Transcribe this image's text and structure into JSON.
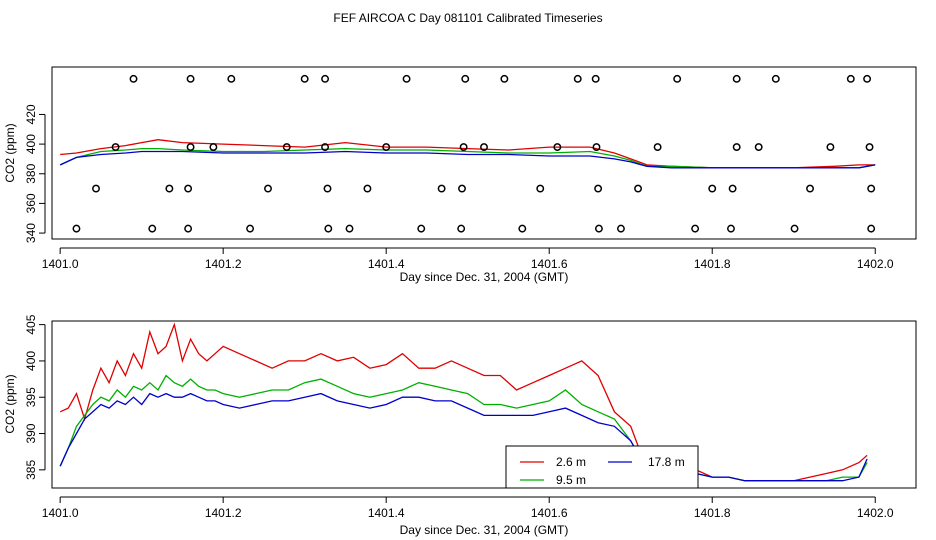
{
  "title": "FEF AIRCOA C  Day 081101  Calibrated Timeseries",
  "chart_data": [
    {
      "type": "line+scatter",
      "name": "top",
      "xlabel": "Day since Dec. 31, 2004 (GMT)",
      "ylabel": "CO2 (ppm)",
      "xlim": [
        1400.99,
        1402.05
      ],
      "ylim": [
        336,
        452
      ],
      "xticks": [
        1401.0,
        1401.2,
        1401.4,
        1401.6,
        1401.8,
        1402.0
      ],
      "xtick_labels": [
        "1401.0",
        "1401.2",
        "1401.4",
        "1401.6",
        "1401.8",
        "1402.0"
      ],
      "yticks": [
        340,
        360,
        380,
        400,
        420
      ],
      "ytick_labels": [
        "340",
        "360",
        "380",
        "400",
        "420"
      ],
      "series": [
        {
          "name": "2.6 m",
          "color": "#e00000",
          "x": [
            1401.0,
            1401.02,
            1401.05,
            1401.08,
            1401.1,
            1401.12,
            1401.15,
            1401.2,
            1401.25,
            1401.3,
            1401.35,
            1401.4,
            1401.45,
            1401.5,
            1401.55,
            1401.6,
            1401.65,
            1401.68,
            1401.7,
            1401.72,
            1401.75,
            1401.8,
            1401.85,
            1401.9,
            1401.95,
            1401.98,
            1402.0
          ],
          "values": [
            393,
            394,
            397,
            399,
            401,
            403,
            401,
            400,
            399,
            398,
            401,
            398,
            398,
            397,
            396,
            398,
            398,
            394,
            390,
            386,
            385,
            384,
            384,
            384,
            385,
            386,
            386
          ]
        },
        {
          "name": "9.5 m",
          "color": "#00b000",
          "x": [
            1401.0,
            1401.02,
            1401.05,
            1401.08,
            1401.1,
            1401.12,
            1401.15,
            1401.2,
            1401.25,
            1401.3,
            1401.35,
            1401.4,
            1401.45,
            1401.5,
            1401.55,
            1401.6,
            1401.65,
            1401.68,
            1401.7,
            1401.72,
            1401.75,
            1401.8,
            1401.85,
            1401.9,
            1401.95,
            1401.98,
            1402.0
          ],
          "values": [
            386,
            391,
            395,
            396,
            397,
            397,
            396,
            395,
            395,
            396,
            397,
            396,
            396,
            395,
            394,
            394,
            395,
            392,
            389,
            385,
            385,
            384,
            384,
            384,
            384,
            384,
            386
          ]
        },
        {
          "name": "17.8 m",
          "color": "#0000cc",
          "x": [
            1401.0,
            1401.02,
            1401.05,
            1401.08,
            1401.1,
            1401.12,
            1401.15,
            1401.2,
            1401.25,
            1401.3,
            1401.35,
            1401.4,
            1401.45,
            1401.5,
            1401.55,
            1401.6,
            1401.65,
            1401.68,
            1401.7,
            1401.72,
            1401.75,
            1401.8,
            1401.85,
            1401.9,
            1401.95,
            1401.98,
            1402.0
          ],
          "values": [
            386,
            391,
            393,
            394,
            395,
            395,
            395,
            394,
            394,
            394,
            395,
            394,
            394,
            393,
            393,
            392,
            392,
            390,
            388,
            385,
            384,
            384,
            384,
            384,
            384,
            384,
            386
          ]
        }
      ],
      "markers": {
        "type": "open-circle",
        "x": [
          1401.09,
          1401.16,
          1401.21,
          1401.3,
          1401.325,
          1401.425,
          1401.497,
          1401.545,
          1401.635,
          1401.657,
          1401.757,
          1401.83,
          1401.878,
          1401.97,
          1401.99,
          1401.068,
          1401.16,
          1401.188,
          1401.278,
          1401.325,
          1401.4,
          1401.495,
          1401.52,
          1401.61,
          1401.658,
          1401.733,
          1401.83,
          1401.857,
          1401.945,
          1401.993,
          1401.044,
          1401.134,
          1401.157,
          1401.255,
          1401.328,
          1401.377,
          1401.468,
          1401.493,
          1401.589,
          1401.66,
          1401.709,
          1401.8,
          1401.825,
          1401.92,
          1401.995,
          1401.02,
          1401.113,
          1401.157,
          1401.233,
          1401.329,
          1401.355,
          1401.443,
          1401.492,
          1401.567,
          1401.661,
          1401.688,
          1401.779,
          1401.823,
          1401.901,
          1401.995
        ],
        "y": [
          444,
          444,
          444,
          444,
          444,
          444,
          444,
          444,
          444,
          444,
          444,
          444,
          444,
          444,
          444,
          398,
          398,
          398,
          398,
          398,
          398,
          398,
          398,
          398,
          398,
          398,
          398,
          398,
          398,
          398,
          370,
          370,
          370,
          370,
          370,
          370,
          370,
          370,
          370,
          370,
          370,
          370,
          370,
          370,
          370,
          343,
          343,
          343,
          343,
          343,
          343,
          343,
          343,
          343,
          343,
          343,
          343,
          343,
          343,
          343
        ]
      }
    },
    {
      "type": "line",
      "name": "bottom",
      "xlabel": "Day since Dec. 31, 2004 (GMT)",
      "ylabel": "CO2 (ppm)",
      "xlim": [
        1400.99,
        1402.05
      ],
      "ylim": [
        382.5,
        405.5
      ],
      "xticks": [
        1401.0,
        1401.2,
        1401.4,
        1401.6,
        1401.8,
        1402.0
      ],
      "xtick_labels": [
        "1401.0",
        "1401.2",
        "1401.4",
        "1401.6",
        "1401.8",
        "1402.0"
      ],
      "yticks": [
        385,
        390,
        395,
        400,
        405
      ],
      "ytick_labels": [
        "385",
        "390",
        "395",
        "400",
        "405"
      ],
      "legend": {
        "position": "bottom-center",
        "entries": [
          "2.6 m",
          "17.8 m",
          "9.5 m"
        ]
      },
      "series": [
        {
          "name": "2.6 m",
          "color": "#e00000",
          "x": [
            1401.0,
            1401.01,
            1401.02,
            1401.03,
            1401.04,
            1401.05,
            1401.06,
            1401.07,
            1401.08,
            1401.09,
            1401.1,
            1401.11,
            1401.12,
            1401.13,
            1401.14,
            1401.15,
            1401.16,
            1401.17,
            1401.18,
            1401.19,
            1401.2,
            1401.22,
            1401.24,
            1401.26,
            1401.28,
            1401.3,
            1401.32,
            1401.34,
            1401.36,
            1401.38,
            1401.4,
            1401.42,
            1401.44,
            1401.46,
            1401.48,
            1401.5,
            1401.52,
            1401.54,
            1401.56,
            1401.58,
            1401.6,
            1401.62,
            1401.64,
            1401.66,
            1401.68,
            1401.7,
            1401.71,
            1401.72,
            1401.74,
            1401.76,
            1401.78,
            1401.8,
            1401.82,
            1401.84,
            1401.86,
            1401.88,
            1401.9,
            1401.92,
            1401.94,
            1401.96,
            1401.98,
            1401.99
          ],
          "values": [
            393,
            393.5,
            395.5,
            392,
            396,
            399,
            397,
            400,
            398,
            401,
            399,
            404,
            401,
            402,
            405,
            400,
            403,
            401,
            400,
            401,
            402,
            401,
            400,
            399,
            400,
            400,
            401,
            400,
            400.5,
            399,
            399.5,
            401,
            399,
            399,
            400,
            399,
            398,
            398,
            396,
            397,
            398,
            399,
            400,
            398,
            393,
            391,
            388,
            385,
            385,
            385,
            385,
            384,
            384,
            383.5,
            383.5,
            383.5,
            383.5,
            384,
            384.5,
            385,
            386,
            387
          ]
        },
        {
          "name": "9.5 m",
          "color": "#00b000",
          "x": [
            1401.0,
            1401.01,
            1401.02,
            1401.03,
            1401.04,
            1401.05,
            1401.06,
            1401.07,
            1401.08,
            1401.09,
            1401.1,
            1401.11,
            1401.12,
            1401.13,
            1401.14,
            1401.15,
            1401.16,
            1401.17,
            1401.18,
            1401.19,
            1401.2,
            1401.22,
            1401.24,
            1401.26,
            1401.28,
            1401.3,
            1401.32,
            1401.34,
            1401.36,
            1401.38,
            1401.4,
            1401.42,
            1401.44,
            1401.46,
            1401.48,
            1401.5,
            1401.52,
            1401.54,
            1401.56,
            1401.58,
            1401.6,
            1401.62,
            1401.64,
            1401.66,
            1401.68,
            1401.7,
            1401.71,
            1401.72,
            1401.74,
            1401.76,
            1401.78,
            1401.8,
            1401.82,
            1401.84,
            1401.86,
            1401.88,
            1401.9,
            1401.92,
            1401.94,
            1401.96,
            1401.98,
            1401.99
          ],
          "values": [
            385.5,
            388,
            391,
            392.5,
            394,
            395,
            394.5,
            396,
            395,
            396.5,
            396,
            397,
            396,
            398,
            397,
            396.5,
            397.5,
            396.5,
            396,
            396,
            395.5,
            395,
            395.5,
            396,
            396,
            397,
            397.5,
            396.5,
            395.5,
            395,
            395.5,
            396,
            397,
            396.5,
            396,
            395.5,
            394,
            394,
            393.5,
            394,
            394.5,
            396,
            394,
            393,
            392,
            389,
            387,
            385,
            385,
            384.5,
            384.5,
            384,
            384,
            383.5,
            383.5,
            383.5,
            383.5,
            383.5,
            383.5,
            384,
            384,
            386
          ]
        },
        {
          "name": "17.8 m",
          "color": "#0000cc",
          "x": [
            1401.0,
            1401.01,
            1401.02,
            1401.03,
            1401.04,
            1401.05,
            1401.06,
            1401.07,
            1401.08,
            1401.09,
            1401.1,
            1401.11,
            1401.12,
            1401.13,
            1401.14,
            1401.15,
            1401.16,
            1401.17,
            1401.18,
            1401.19,
            1401.2,
            1401.22,
            1401.24,
            1401.26,
            1401.28,
            1401.3,
            1401.32,
            1401.34,
            1401.36,
            1401.38,
            1401.4,
            1401.42,
            1401.44,
            1401.46,
            1401.48,
            1401.5,
            1401.52,
            1401.54,
            1401.56,
            1401.58,
            1401.6,
            1401.62,
            1401.64,
            1401.66,
            1401.68,
            1401.7,
            1401.71,
            1401.72,
            1401.74,
            1401.76,
            1401.78,
            1401.8,
            1401.82,
            1401.84,
            1401.86,
            1401.88,
            1401.9,
            1401.92,
            1401.94,
            1401.96,
            1401.98,
            1401.99
          ],
          "values": [
            385.5,
            388,
            390,
            392,
            393,
            394,
            393.5,
            394.5,
            394,
            395,
            394,
            395.5,
            395,
            395.5,
            395,
            395,
            395.5,
            395,
            394.5,
            394.5,
            394,
            393.5,
            394,
            394.5,
            394.5,
            395,
            395.5,
            394.5,
            394,
            393.5,
            394,
            395,
            395,
            394.5,
            394.5,
            393.5,
            392.5,
            392.5,
            392.5,
            392.5,
            393,
            393.5,
            392.5,
            391.5,
            391,
            389,
            387,
            385,
            385,
            384.5,
            384.5,
            384,
            384,
            383.5,
            383.5,
            383.5,
            383.5,
            383.5,
            383.5,
            383.5,
            384,
            386.5
          ]
        }
      ]
    }
  ]
}
